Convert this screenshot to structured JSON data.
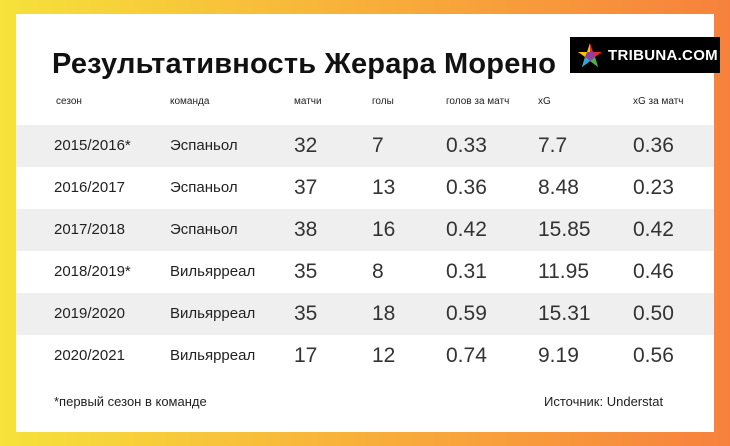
{
  "title": "Результативность Жерара Морено",
  "logo": {
    "text": "TRIBUNA.COM",
    "icon": "star-icon"
  },
  "columns": [
    "сезон",
    "команда",
    "матчи",
    "голы",
    "голов за матч",
    "xG",
    "xG за матч"
  ],
  "rows": [
    [
      "2015/2016*",
      "Эспаньол",
      "32",
      "7",
      "0.33",
      "7.7",
      "0.36"
    ],
    [
      "2016/2017",
      "Эспаньол",
      "37",
      "13",
      "0.36",
      "8.48",
      "0.23"
    ],
    [
      "2017/2018",
      "Эспаньол",
      "38",
      "16",
      "0.42",
      "15.85",
      "0.42"
    ],
    [
      "2018/2019*",
      "Вильярреал",
      "35",
      "8",
      "0.31",
      "11.95",
      "0.46"
    ],
    [
      "2019/2020",
      "Вильярреал",
      "35",
      "18",
      "0.59",
      "15.31",
      "0.50"
    ],
    [
      "2020/2021",
      "Вильярреал",
      "17",
      "12",
      "0.74",
      "9.19",
      "0.56"
    ]
  ],
  "footnote": "*первый сезон в команде",
  "source": "Источник: Understat",
  "colors": {
    "background_start": "#f6e23a",
    "background_end": "#f7813c",
    "row_shade": "#efefef"
  }
}
